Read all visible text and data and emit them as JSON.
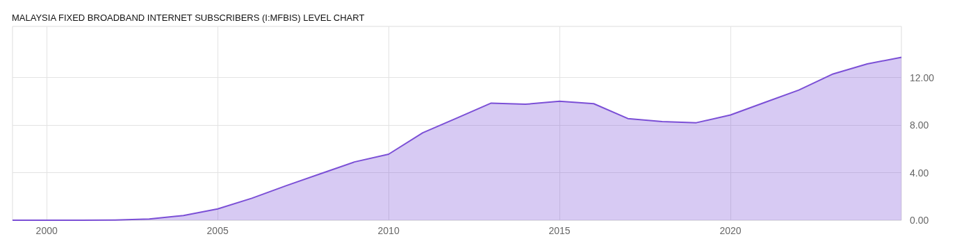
{
  "chart_data": {
    "type": "area",
    "title": "MALAYSIA FIXED BROADBAND INTERNET SUBSCRIBERS (I:MFBIS) LEVEL CHART",
    "x": [
      1999,
      2000,
      2001,
      2002,
      2003,
      2004,
      2005,
      2006,
      2007,
      2008,
      2009,
      2010,
      2011,
      2012,
      2013,
      2014,
      2015,
      2016,
      2017,
      2018,
      2019,
      2020,
      2021,
      2022,
      2023,
      2024,
      2025
    ],
    "series": [
      {
        "color": "#7b4fd6",
        "values": [
          0,
          0,
          0,
          0.02,
          0.1,
          0.4,
          0.95,
          1.85,
          2.9,
          3.9,
          4.9,
          5.55,
          7.35,
          8.6,
          9.85,
          9.75,
          10.0,
          9.8,
          8.55,
          8.3,
          8.2,
          8.85,
          9.9,
          10.95,
          12.3,
          13.15,
          13.7
        ]
      }
    ],
    "xlim": [
      1999,
      2025
    ],
    "xticks": [
      2000,
      2005,
      2010,
      2015,
      2020
    ],
    "ylim": [
      0,
      16.3
    ],
    "yticks": [
      {
        "value": 0,
        "label": "0.00"
      },
      {
        "value": 4,
        "label": "4.00"
      },
      {
        "value": 8,
        "label": "8.00"
      },
      {
        "value": 12,
        "label": "12.00"
      }
    ],
    "grid": true,
    "marker": "none",
    "line_style": "solid"
  }
}
